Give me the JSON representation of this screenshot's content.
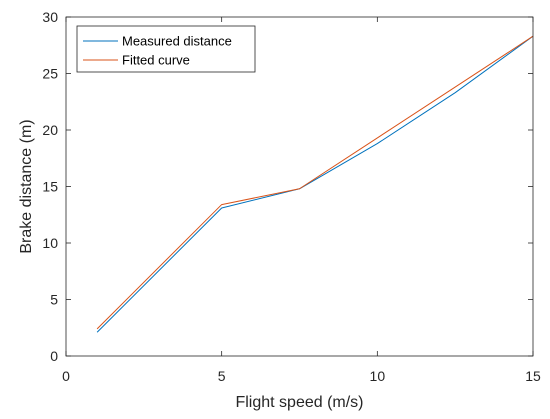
{
  "chart_data": {
    "type": "line",
    "title": "",
    "xlabel": "Flight speed (m/s)",
    "ylabel": "Brake distance (m)",
    "xlim": [
      0,
      15
    ],
    "ylim": [
      0,
      30
    ],
    "xticks": [
      0,
      5,
      10,
      15
    ],
    "yticks": [
      0,
      5,
      10,
      15,
      20,
      25,
      30
    ],
    "grid": false,
    "legend_position": "top-left",
    "series": [
      {
        "name": "Measured distance",
        "color": "#0072BD",
        "x": [
          1,
          5,
          7.5,
          10,
          12.5,
          15
        ],
        "y": [
          2.1,
          13.1,
          14.8,
          18.8,
          23.3,
          28.3
        ]
      },
      {
        "name": "Fitted curve",
        "color": "#D95319",
        "x": [
          1,
          5,
          7.5,
          10,
          12.5,
          15
        ],
        "y": [
          2.4,
          13.4,
          14.8,
          19.3,
          23.8,
          28.3
        ]
      }
    ]
  }
}
